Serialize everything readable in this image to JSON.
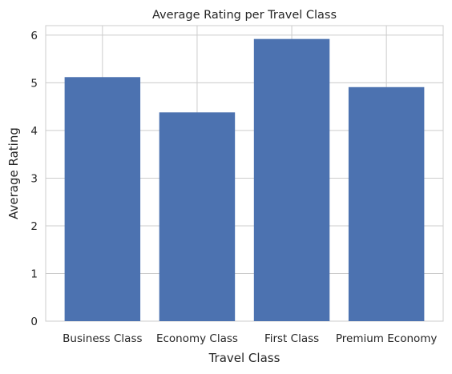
{
  "chart_data": {
    "type": "bar",
    "title": "Average Rating per Travel Class",
    "xlabel": "Travel Class",
    "ylabel": "Average Rating",
    "categories": [
      "Business Class",
      "Economy Class",
      "First Class",
      "Premium Economy"
    ],
    "values": [
      5.12,
      4.38,
      5.92,
      4.91
    ],
    "ylim": [
      0,
      6.2
    ],
    "yticks": [
      "0",
      "1",
      "2",
      "3",
      "4",
      "5",
      "6"
    ],
    "grid": true,
    "bar_color": "#4c72b0",
    "grid_color": "#cccccc",
    "background_color": "#ffffff"
  }
}
